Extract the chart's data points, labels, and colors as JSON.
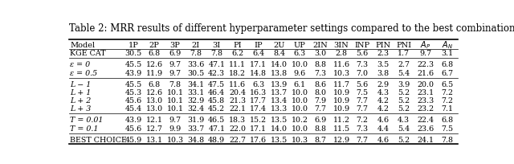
{
  "title": "Table 2: MRR results of different hyperparameter settings compared to the best combination.",
  "col_labels": [
    "Model",
    "1P",
    "2P",
    "3P",
    "2I",
    "3I",
    "PI",
    "IP",
    "2U",
    "UP",
    "2IN",
    "3IN",
    "INP",
    "PIN",
    "PNI",
    "AP",
    "AN"
  ],
  "rows": [
    [
      "KGE CAT",
      "30.5",
      "6.8",
      "6.9",
      "7.8",
      "7.8",
      "6.2",
      "6.4",
      "8.4",
      "6.3",
      "3.0",
      "2.8",
      "5.6",
      "2.3",
      "1.7",
      "9.7",
      "3.1"
    ],
    [
      "ε = 0",
      "45.5",
      "12.6",
      "9.7",
      "33.6",
      "47.1",
      "11.1",
      "17.1",
      "14.0",
      "10.0",
      "8.8",
      "11.6",
      "7.3",
      "3.5",
      "2.7",
      "22.3",
      "6.8"
    ],
    [
      "ε = 0.5",
      "43.9",
      "11.9",
      "9.7",
      "30.5",
      "42.3",
      "18.2",
      "14.8",
      "13.8",
      "9.6",
      "7.3",
      "10.3",
      "7.0",
      "3.8",
      "5.4",
      "21.6",
      "6.7"
    ],
    [
      "L − 1",
      "45.5",
      "6.8",
      "7.8",
      "34.1",
      "47.5",
      "11.6",
      "6.3",
      "13.9",
      "6.1",
      "8.6",
      "11.7",
      "5.6",
      "2.9",
      "3.9",
      "20.0",
      "6.5"
    ],
    [
      "L + 1",
      "45.3",
      "12.6",
      "10.1",
      "33.1",
      "46.4",
      "20.4",
      "16.3",
      "13.7",
      "10.0",
      "8.0",
      "10.9",
      "7.5",
      "4.3",
      "5.2",
      "23.1",
      "7.2"
    ],
    [
      "L + 2",
      "45.6",
      "13.0",
      "10.1",
      "32.9",
      "45.8",
      "21.3",
      "17.7",
      "13.4",
      "10.0",
      "7.9",
      "10.9",
      "7.7",
      "4.2",
      "5.2",
      "23.3",
      "7.2"
    ],
    [
      "L + 3",
      "45.4",
      "13.0",
      "10.1",
      "32.4",
      "45.2",
      "22.1",
      "17.4",
      "13.3",
      "10.0",
      "7.7",
      "10.9",
      "7.7",
      "4.2",
      "5.2",
      "23.2",
      "7.1"
    ],
    [
      "T = 0.01",
      "43.9",
      "12.1",
      "9.7",
      "31.9",
      "46.5",
      "18.3",
      "15.2",
      "13.5",
      "10.2",
      "6.9",
      "11.2",
      "7.2",
      "4.6",
      "4.3",
      "22.4",
      "6.8"
    ],
    [
      "T = 0.1",
      "45.6",
      "12.7",
      "9.9",
      "33.7",
      "47.1",
      "22.0",
      "17.1",
      "14.0",
      "10.0",
      "8.8",
      "11.5",
      "7.3",
      "4.4",
      "5.4",
      "23.6",
      "7.5"
    ],
    [
      "BEST CHOICE",
      "45.9",
      "13.1",
      "10.3",
      "34.8",
      "48.9",
      "22.7",
      "17.6",
      "13.5",
      "10.3",
      "8.7",
      "12.9",
      "7.7",
      "4.6",
      "5.2",
      "24.1",
      "7.8"
    ]
  ],
  "group_separators_after": [
    0,
    2,
    6,
    8
  ],
  "smallcaps_rows": [
    0,
    9
  ],
  "italic_rows": [
    1,
    2,
    3,
    4,
    5,
    6,
    7,
    8
  ],
  "title_fontsize": 8.5,
  "header_fontsize": 7.0,
  "cell_fontsize": 6.8,
  "col_widths_rel": [
    2.6,
    1.0,
    1.0,
    1.0,
    1.0,
    1.0,
    1.0,
    1.0,
    1.0,
    1.0,
    1.0,
    1.0,
    1.0,
    1.0,
    1.0,
    1.1,
    1.0
  ]
}
